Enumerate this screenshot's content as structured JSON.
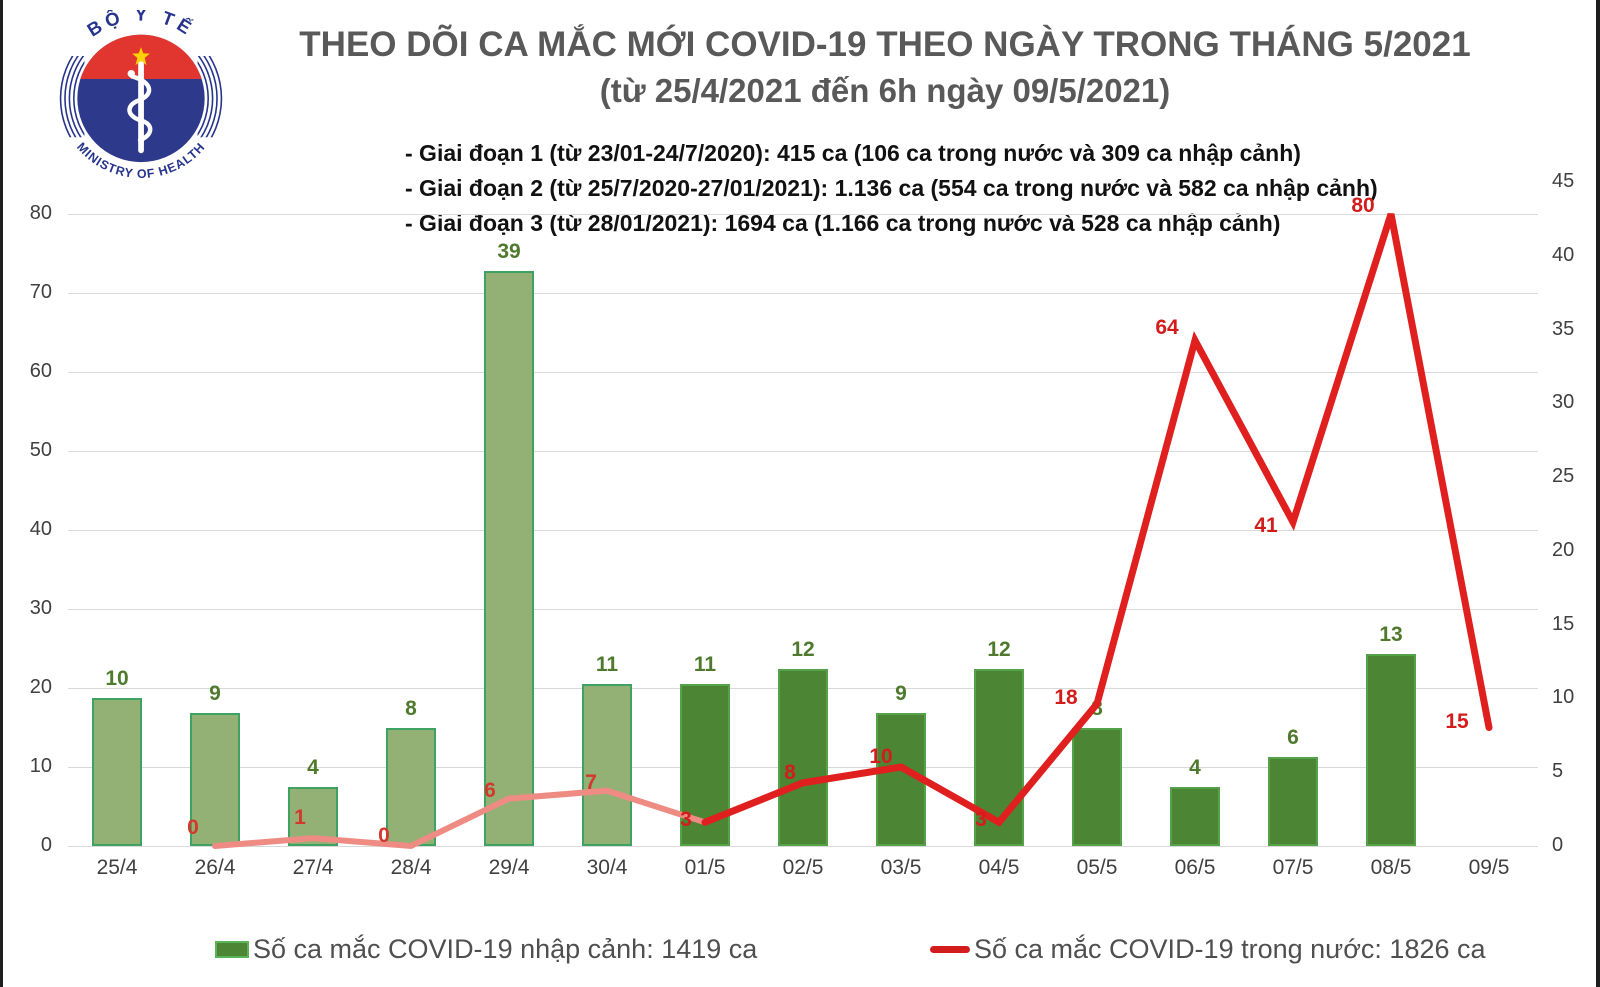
{
  "logo": {
    "name": "ministry-of-health-logo",
    "top_text": "BỘ Y TẾ",
    "bottom_text": "MINISTRY OF HEALTH"
  },
  "chart_data": {
    "type": "combo",
    "title": "THEO DÕI CA MẮC MỚI COVID-19 THEO NGÀY TRONG THÁNG 5/2021",
    "subtitle": "(từ 25/4/2021 đến 6h ngày 09/5/2021)",
    "annotations": [
      "- Giai đoạn 1 (từ 23/01-24/7/2020): 415 ca (106 ca trong nước và 309 ca nhập cảnh)",
      "- Giai đoạn 2 (từ 25/7/2020-27/01/2021): 1.136 ca (554 ca trong nước và 582 ca nhập cảnh)",
      "- Giai đoạn 3 (từ 28/01/2021): 1694 ca (1.166 ca trong nước và 528 ca nhập cảnh)"
    ],
    "categories": [
      "25/4",
      "26/4",
      "27/4",
      "28/4",
      "29/4",
      "30/4",
      "01/5",
      "02/5",
      "03/5",
      "04/5",
      "05/5",
      "06/5",
      "07/5",
      "08/5",
      "09/5"
    ],
    "series": [
      {
        "name": "Số ca mắc COVID-19 nhập cảnh",
        "type": "bar",
        "axis": "right",
        "values": [
          10,
          9,
          4,
          8,
          39,
          11,
          11,
          12,
          9,
          12,
          8,
          4,
          6,
          13,
          null
        ]
      },
      {
        "name": "Số ca mắc COVID-19 trong nước",
        "type": "line",
        "axis": "left",
        "values": [
          null,
          0,
          1,
          0,
          6,
          7,
          3,
          8,
          10,
          3,
          18,
          64,
          41,
          80,
          15
        ]
      }
    ],
    "left_axis": {
      "min": 0,
      "max": 80,
      "step": 10
    },
    "right_axis": {
      "min": 0,
      "max": 45,
      "step": 5
    },
    "grid": true,
    "legend_position": "bottom",
    "legend": [
      "Số ca mắc COVID-19 nhập cảnh: 1419 ca",
      "Số ca mắc COVID-19 trong nước: 1826 ca"
    ],
    "colors": {
      "bar_april_fill": "#93B075",
      "bar_april_border": "#3EA263",
      "bar_may_fill": "#4C8533",
      "bar_may_border": "#54A348",
      "line_april": "#EE8C84",
      "line_may": "#E01F1F",
      "bar_label": "#4F7A2D",
      "line_label_april": "#D4372B",
      "line_label_may": "#D31C1C",
      "title_text": "#595959",
      "axis_text": "#404040",
      "gridline": "#D9D9D9"
    }
  }
}
